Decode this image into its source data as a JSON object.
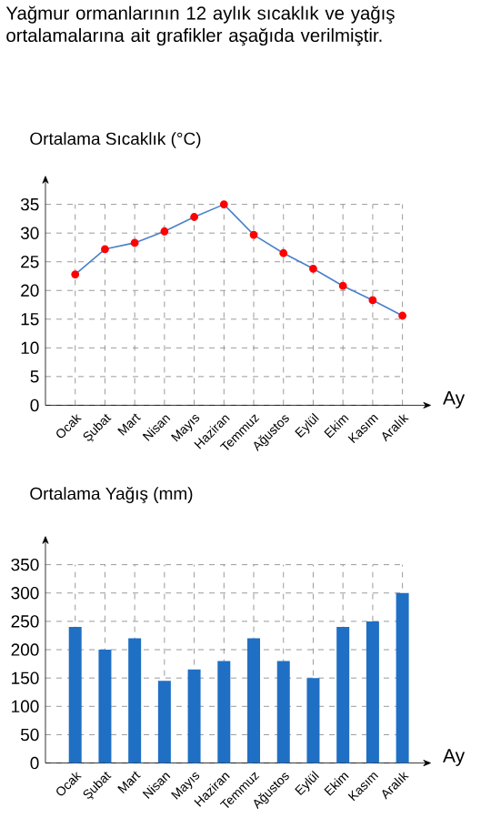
{
  "chart_data": [
    {
      "type": "line",
      "title": "Yağmur ormanlarının 12 aylık sıcaklık ve yağış ortalamalarına ait grafikler aşağıda verilmiştir.",
      "ylabel": "Ortalama Sıcaklık (°C)",
      "xlabel": "Ay",
      "categories": [
        "Ocak",
        "Şubat",
        "Mart",
        "Nisan",
        "Mayıs",
        "Haziran",
        "Temmuz",
        "Ağustos",
        "Eylül",
        "Ekim",
        "Kasım",
        "Aralık"
      ],
      "series": [
        {
          "color": "#4a80c8",
          "values": [
            22.8,
            27.2,
            28.3,
            30.3,
            32.8,
            35,
            29.7,
            26.5,
            23.8,
            20.8,
            18.3,
            15.6
          ]
        }
      ],
      "ylim": [
        0,
        35
      ],
      "yticks": [
        0,
        5,
        10,
        15,
        20,
        25,
        30,
        35
      ],
      "grid": true,
      "marker": "circle",
      "line_style": "solid"
    },
    {
      "type": "bar",
      "ylabel": "Ortalama Yağış (mm)",
      "xlabel": "Ay",
      "categories": [
        "Ocak",
        "Şubat",
        "Mart",
        "Nisan",
        "Mayıs",
        "Haziran",
        "Temmuz",
        "Ağustos",
        "Eylül",
        "Ekim",
        "Kasım",
        "Aralık"
      ],
      "series": [
        {
          "color": "#1f6fc4",
          "values": [
            240,
            200,
            220,
            145,
            165,
            180,
            220,
            180,
            150,
            240,
            250,
            300
          ]
        }
      ],
      "ylim": [
        0,
        350
      ],
      "yticks": [
        0,
        50,
        100,
        150,
        200,
        250,
        300,
        350
      ],
      "grid": true
    }
  ]
}
